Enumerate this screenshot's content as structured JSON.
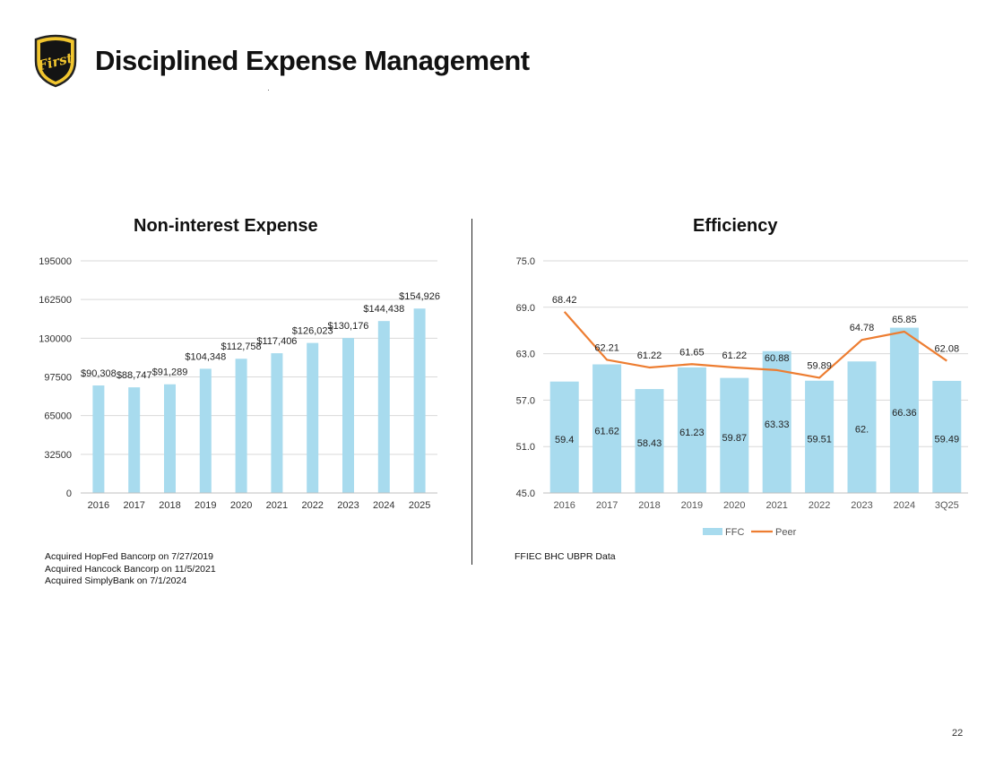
{
  "header": {
    "title": "Disciplined Expense Management",
    "logo_icon": "first-shield-logo-icon",
    "logo_text": "First"
  },
  "left_notes": [
    "Acquired HopFed Bancorp on 7/27/2019",
    "Acquired Hancock Bancorp on 11/5/2021",
    "Acquired SimplyBank on 7/1/2024"
  ],
  "right_source": "FFIEC BHC UBPR Data",
  "page_number": "22",
  "colors": {
    "bar": "#a8dbee",
    "line": "#ed7d31",
    "grid": "#d9d9d9"
  },
  "chart_data": [
    {
      "type": "bar",
      "title": "Non-interest Expense",
      "categories": [
        "2016",
        "2017",
        "2018",
        "2019",
        "2020",
        "2021",
        "2022",
        "2023",
        "2024",
        "2025"
      ],
      "values": [
        90308,
        88747,
        91289,
        104348,
        112758,
        117406,
        126023,
        130176,
        144438,
        154926
      ],
      "data_labels": [
        "$90,308",
        "$88,747",
        "$91,289",
        "$104,348",
        "$112,758",
        "$117,406",
        "$126,023",
        "$130,176",
        "$144,438",
        "$154,926"
      ],
      "yticks": [
        "0",
        "32500",
        "65000",
        "97500",
        "130000",
        "162500",
        "195000"
      ],
      "ylim": [
        0,
        195000
      ],
      "xlabel": "",
      "ylabel": "",
      "grid": true
    },
    {
      "type": "bar+line",
      "title": "Efficiency",
      "categories": [
        "2016",
        "2017",
        "2018",
        "2019",
        "2020",
        "2021",
        "2022",
        "2023",
        "2024",
        "3Q25"
      ],
      "series": [
        {
          "name": "FFC",
          "type": "bar",
          "values": [
            59.4,
            61.62,
            58.43,
            61.23,
            59.87,
            63.33,
            59.51,
            62.0,
            66.36,
            59.49
          ],
          "data_labels": [
            "59.4",
            "61.62",
            "58.43",
            "61.23",
            "59.87",
            "63.33",
            "59.51",
            "62.",
            "66.36",
            "59.49"
          ]
        },
        {
          "name": "Peer",
          "type": "line",
          "values": [
            68.42,
            62.21,
            61.22,
            61.65,
            61.22,
            60.88,
            59.89,
            64.78,
            65.85,
            62.08
          ],
          "data_labels": [
            "68.42",
            "62.21",
            "61.22",
            "61.65",
            "61.22",
            "60.88",
            "59.89",
            "64.78",
            "65.85",
            "62.08"
          ]
        }
      ],
      "yticks": [
        "45.0",
        "51.0",
        "57.0",
        "63.0",
        "69.0",
        "75.0"
      ],
      "ylim": [
        45,
        75
      ],
      "legend": "bottom-center",
      "grid": true
    }
  ]
}
